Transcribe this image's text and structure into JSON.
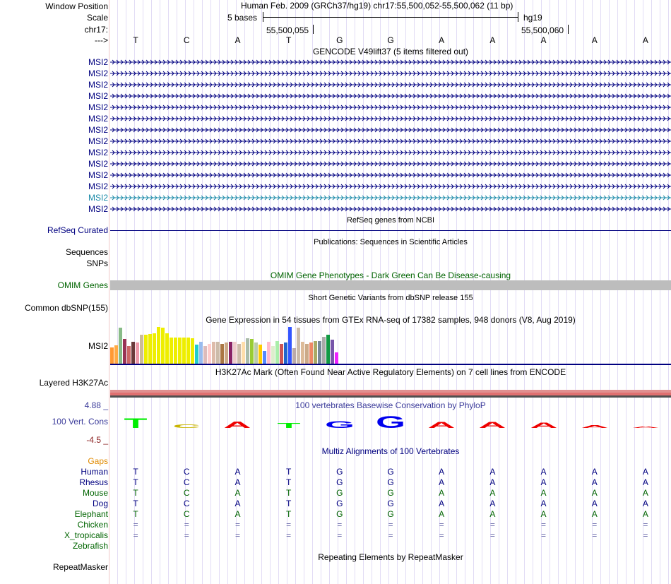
{
  "header": {
    "labels": [
      "Window Position",
      "Scale",
      "chr17:",
      "--->"
    ],
    "assembly_text": "Human Feb. 2009 (GRCh37/hg19)   chr17:55,500,052-55,500,062 (11 bp)",
    "scale_text": "5 bases",
    "db_text": "hg19",
    "pos1": "55,500,055",
    "pos2": "55,500,060"
  },
  "sequence": [
    "T",
    "C",
    "A",
    "T",
    "G",
    "G",
    "A",
    "A",
    "A",
    "A",
    "A"
  ],
  "gencode": {
    "title": "GENCODE V49lift37 (5 items filtered out)",
    "genes": [
      "MSI2",
      "MSI2",
      "MSI2",
      "MSI2",
      "MSI2",
      "MSI2",
      "MSI2",
      "MSI2",
      "MSI2",
      "MSI2",
      "MSI2",
      "MSI2",
      "MSI2",
      "MSI2"
    ],
    "gene_colors": [
      "#000080",
      "#000080",
      "#000080",
      "#000080",
      "#000080",
      "#000080",
      "#000080",
      "#000080",
      "#000080",
      "#000080",
      "#000080",
      "#000080",
      "#1a8aa8",
      "#000080"
    ]
  },
  "refseq": {
    "label": "RefSeq Curated",
    "title": "RefSeq genes from NCBI"
  },
  "pubs": {
    "labels": [
      "Sequences",
      "SNPs"
    ],
    "title": "Publications: Sequences in Scientific Articles"
  },
  "omim": {
    "label": "OMIM Genes",
    "title": "OMIM Gene Phenotypes - Dark Green Can Be Disease-causing"
  },
  "dbsnp": {
    "label": "Common dbSNP(155)",
    "title": "Short Genetic Variants from dbSNP release 155"
  },
  "gtex": {
    "title": "Gene Expression in 54 tissues from GTEx RNA-seq of 17382 samples, 948 donors (V8, Aug 2019)",
    "label": "MSI2",
    "bars": [
      0.45,
      0.5,
      0.98,
      0.68,
      0.48,
      0.6,
      0.58,
      0.78,
      0.78,
      0.8,
      0.82,
      1.0,
      0.98,
      0.82,
      0.72,
      0.72,
      0.72,
      0.72,
      0.72,
      0.7,
      0.52,
      0.6,
      0.48,
      0.54,
      0.6,
      0.6,
      0.54,
      0.58,
      0.6,
      0.6,
      0.54,
      0.6,
      0.7,
      0.68,
      0.58,
      0.52,
      0.34,
      0.6,
      0.48,
      0.62,
      0.54,
      0.58,
      1.0,
      0.42,
      0.98,
      0.6,
      0.54,
      0.58,
      0.62,
      0.62,
      0.74,
      0.78,
      0.66,
      0.3
    ],
    "bar_colors": [
      "#ff9933",
      "#ffaa44",
      "#88bb88",
      "#993355",
      "#cc6666",
      "#6a3a3a",
      "#ee99aa",
      "#ccbb99",
      "#eeee00",
      "#eeee00",
      "#eeee00",
      "#eeee00",
      "#eeee00",
      "#eeee00",
      "#eeee00",
      "#eeee00",
      "#eeee00",
      "#eeee00",
      "#eeee00",
      "#eeee00",
      "#22cccc",
      "#99bbee",
      "#ddbbbb",
      "#ffcccc",
      "#ddbbaa",
      "#ccbbaa",
      "#aa7744",
      "#ccaa88",
      "#882266",
      "#eecccc",
      "#ccbbaa",
      "#ffddaa",
      "#aabbaa",
      "#99cc33",
      "#bbccaa",
      "#ffcc00",
      "#5588ff",
      "#ffbbcc",
      "#ddeecc",
      "#aaeeaa",
      "#cc5555",
      "#2266cc",
      "#3355ff",
      "#bbaaaa",
      "#ccbbaa",
      "#ddbb99",
      "#ccaa88",
      "#ee8866",
      "#aaaa66",
      "#778899",
      "#aaaaaa",
      "#119944",
      "#7755aa",
      "#ee22ff"
    ]
  },
  "h3k27ac": {
    "title": "H3K27Ac Mark (Often Found Near Active Regulatory Elements) on 7 cell lines from ENCODE",
    "label": "Layered H3K27Ac",
    "layer_colors": [
      "#e09090",
      "#e07070",
      "#505050"
    ]
  },
  "phylop": {
    "title": "100 vertebrates Basewise Conservation by PhyloP",
    "label": "100 Vert. Cons",
    "max": "4.88 _",
    "min": "-4.5 _",
    "colors": {
      "T": "#00ee00",
      "C": "#c8b400",
      "A": "#ee0000",
      "G": "#0000ee"
    },
    "scores": [
      0.55,
      0.2,
      0.38,
      0.28,
      0.42,
      0.72,
      0.35,
      0.35,
      0.32,
      0.15,
      0.05
    ]
  },
  "multiz": {
    "title": "Multiz Alignments of 100 Vertebrates",
    "gaps_label": "Gaps",
    "species": [
      {
        "name": "Human",
        "color": "#000080",
        "bases": [
          "T",
          "C",
          "A",
          "T",
          "G",
          "G",
          "A",
          "A",
          "A",
          "A",
          "A"
        ]
      },
      {
        "name": "Rhesus",
        "color": "#000080",
        "bases": [
          "T",
          "C",
          "A",
          "T",
          "G",
          "G",
          "A",
          "A",
          "A",
          "A",
          "A"
        ]
      },
      {
        "name": "Mouse",
        "color": "#006400",
        "bases": [
          "T",
          "C",
          "A",
          "T",
          "G",
          "G",
          "A",
          "A",
          "A",
          "A",
          "A"
        ]
      },
      {
        "name": "Dog",
        "color": "#000080",
        "bases": [
          "T",
          "C",
          "A",
          "T",
          "G",
          "G",
          "A",
          "A",
          "A",
          "A",
          "A"
        ]
      },
      {
        "name": "Elephant",
        "color": "#006400",
        "bases": [
          "T",
          "C",
          "A",
          "T",
          "G",
          "G",
          "A",
          "A",
          "A",
          "A",
          "A"
        ]
      },
      {
        "name": "Chicken",
        "color": "#006400",
        "bases": [
          "=",
          "=",
          "=",
          "=",
          "=",
          "=",
          "=",
          "=",
          "=",
          "=",
          "="
        ]
      },
      {
        "name": "X_tropicalis",
        "color": "#006400",
        "bases": [
          "=",
          "=",
          "=",
          "=",
          "=",
          "=",
          "=",
          "=",
          "=",
          "=",
          "="
        ]
      },
      {
        "name": "Zebrafish",
        "color": "#006400",
        "bases": []
      }
    ]
  },
  "repeatmasker": {
    "label": "RepeatMasker",
    "title": "Repeating Elements by RepeatMasker"
  }
}
